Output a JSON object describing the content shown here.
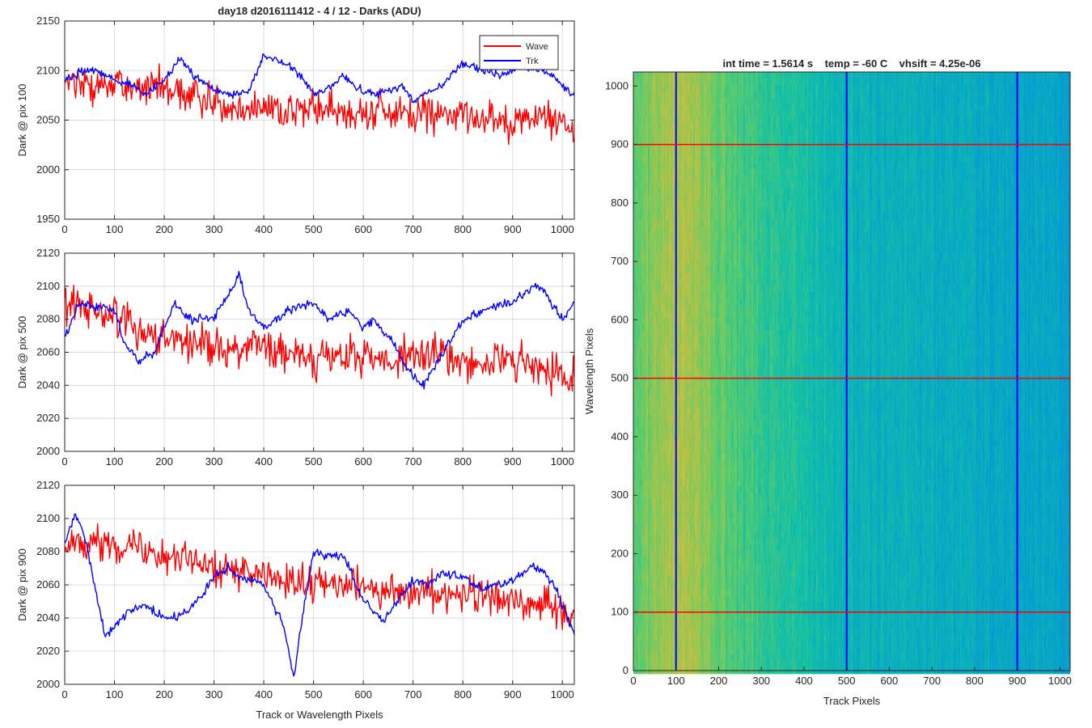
{
  "figure": {
    "title": "day18 d2016111412 - 4 / 12 - Darks (ADU)",
    "colors": {
      "wave": "#ff0000",
      "trk": "#0000ff",
      "grid": "#dcdcdc",
      "axis": "#262626"
    }
  },
  "chart_data": [
    {
      "type": "line",
      "title": "day18 d2016111412 - 4 / 12 - Darks (ADU)",
      "xlabel": "",
      "ylabel": "Dark @ pix 100",
      "xlim": [
        0,
        1024
      ],
      "ylim": [
        1950,
        2150
      ],
      "xticks": [
        0,
        100,
        200,
        300,
        400,
        500,
        600,
        700,
        800,
        900,
        1000
      ],
      "yticks": [
        1950,
        2000,
        2050,
        2100,
        2150
      ],
      "grid": true,
      "legend": {
        "position": "top-right",
        "entries": [
          "Wave",
          "Trk"
        ]
      },
      "series": [
        {
          "name": "Wave",
          "color": "#ff0000",
          "noise_amplitude": 28,
          "x": [
            0,
            50,
            100,
            150,
            200,
            250,
            300,
            350,
            400,
            450,
            500,
            550,
            600,
            650,
            700,
            750,
            800,
            850,
            900,
            950,
            1000,
            1024
          ],
          "y": [
            2088,
            2085,
            2087,
            2082,
            2080,
            2075,
            2070,
            2065,
            2065,
            2060,
            2062,
            2058,
            2060,
            2057,
            2055,
            2058,
            2053,
            2055,
            2050,
            2052,
            2048,
            2045
          ]
        },
        {
          "name": "Trk",
          "color": "#0000ff",
          "noise_amplitude": 6,
          "x": [
            0,
            30,
            60,
            100,
            140,
            160,
            200,
            230,
            260,
            300,
            340,
            370,
            400,
            420,
            450,
            480,
            500,
            530,
            560,
            600,
            640,
            680,
            700,
            720,
            760,
            780,
            800,
            840,
            880,
            920,
            960,
            980,
            1000,
            1024
          ],
          "y": [
            2090,
            2098,
            2102,
            2090,
            2085,
            2075,
            2090,
            2112,
            2095,
            2080,
            2075,
            2080,
            2115,
            2112,
            2105,
            2092,
            2075,
            2082,
            2095,
            2078,
            2078,
            2085,
            2068,
            2075,
            2085,
            2098,
            2108,
            2100,
            2095,
            2105,
            2100,
            2095,
            2085,
            2075
          ]
        }
      ]
    },
    {
      "type": "line",
      "title": "",
      "xlabel": "",
      "ylabel": "Dark @ pix 500",
      "xlim": [
        0,
        1024
      ],
      "ylim": [
        2000,
        2120
      ],
      "xticks": [
        0,
        100,
        200,
        300,
        400,
        500,
        600,
        700,
        800,
        900,
        1000
      ],
      "yticks": [
        2000,
        2020,
        2040,
        2060,
        2080,
        2100,
        2120
      ],
      "grid": true,
      "series": [
        {
          "name": "Wave",
          "color": "#ff0000",
          "noise_amplitude": 18,
          "x": [
            0,
            50,
            100,
            150,
            200,
            250,
            300,
            350,
            400,
            450,
            500,
            550,
            600,
            650,
            700,
            750,
            800,
            850,
            900,
            950,
            1000,
            1024
          ],
          "y": [
            2088,
            2085,
            2084,
            2075,
            2070,
            2066,
            2065,
            2063,
            2062,
            2058,
            2058,
            2056,
            2058,
            2055,
            2056,
            2058,
            2056,
            2055,
            2054,
            2050,
            2045,
            2048
          ]
        },
        {
          "name": "Trk",
          "color": "#0000ff",
          "noise_amplitude": 4,
          "x": [
            0,
            30,
            60,
            100,
            120,
            150,
            180,
            220,
            250,
            300,
            340,
            350,
            370,
            400,
            450,
            500,
            530,
            570,
            600,
            620,
            660,
            700,
            720,
            760,
            800,
            860,
            900,
            940,
            960,
            980,
            1000,
            1024
          ],
          "y": [
            2070,
            2090,
            2088,
            2085,
            2065,
            2055,
            2060,
            2090,
            2080,
            2080,
            2100,
            2108,
            2085,
            2075,
            2085,
            2090,
            2080,
            2085,
            2075,
            2080,
            2065,
            2045,
            2040,
            2060,
            2080,
            2088,
            2090,
            2100,
            2098,
            2088,
            2080,
            2090
          ]
        }
      ]
    },
    {
      "type": "line",
      "title": "",
      "xlabel": "Track or Wavelength Pixels",
      "ylabel": "Dark @ pix 900",
      "xlim": [
        0,
        1024
      ],
      "ylim": [
        2000,
        2120
      ],
      "xticks": [
        0,
        100,
        200,
        300,
        400,
        500,
        600,
        700,
        800,
        900,
        1000
      ],
      "yticks": [
        2000,
        2020,
        2040,
        2060,
        2080,
        2100,
        2120
      ],
      "grid": true,
      "series": [
        {
          "name": "Wave",
          "color": "#ff0000",
          "noise_amplitude": 16,
          "x": [
            0,
            50,
            100,
            150,
            200,
            250,
            300,
            350,
            400,
            450,
            500,
            550,
            600,
            650,
            700,
            750,
            800,
            850,
            900,
            950,
            1000,
            1024
          ],
          "y": [
            2088,
            2085,
            2085,
            2083,
            2080,
            2075,
            2072,
            2068,
            2065,
            2060,
            2060,
            2058,
            2060,
            2055,
            2055,
            2056,
            2055,
            2054,
            2052,
            2050,
            2045,
            2042
          ]
        },
        {
          "name": "Trk",
          "color": "#0000ff",
          "noise_amplitude": 4,
          "x": [
            0,
            20,
            40,
            60,
            80,
            100,
            130,
            160,
            190,
            220,
            250,
            280,
            300,
            330,
            350,
            400,
            440,
            460,
            480,
            500,
            530,
            560,
            600,
            640,
            680,
            700,
            730,
            760,
            800,
            840,
            900,
            940,
            980,
            1000,
            1024
          ],
          "y": [
            2085,
            2102,
            2090,
            2060,
            2030,
            2035,
            2045,
            2048,
            2042,
            2040,
            2045,
            2055,
            2065,
            2070,
            2065,
            2060,
            2035,
            2005,
            2045,
            2080,
            2078,
            2078,
            2050,
            2038,
            2055,
            2062,
            2060,
            2068,
            2065,
            2058,
            2062,
            2072,
            2062,
            2048,
            2030
          ]
        }
      ]
    },
    {
      "type": "heatmap",
      "title": "int time = 1.5614 s    temp = -60 C    vhsift = 4.25e-06",
      "xlabel": "Track Pixels",
      "ylabel": "Wavelength Pixels",
      "xlim": [
        0,
        1024
      ],
      "ylim": [
        0,
        1024
      ],
      "xticks": [
        0,
        100,
        200,
        300,
        400,
        500,
        600,
        700,
        800,
        900,
        1000
      ],
      "yticks": [
        0,
        100,
        200,
        300,
        400,
        500,
        600,
        700,
        800,
        900,
        1000
      ],
      "colormap": "parula",
      "column_level_profile": {
        "x": [
          0,
          50,
          100,
          150,
          200,
          300,
          400,
          500,
          600,
          700,
          800,
          900,
          1000,
          1024
        ],
        "level": [
          0.62,
          0.68,
          0.72,
          0.7,
          0.62,
          0.55,
          0.5,
          0.45,
          0.44,
          0.43,
          0.42,
          0.4,
          0.38,
          0.38
        ]
      },
      "vertical_lines": {
        "x": [
          100,
          500,
          900
        ],
        "color": "#0000ff"
      },
      "horizontal_lines": {
        "y": [
          100,
          500,
          900
        ],
        "color": "#ff0000"
      }
    }
  ]
}
